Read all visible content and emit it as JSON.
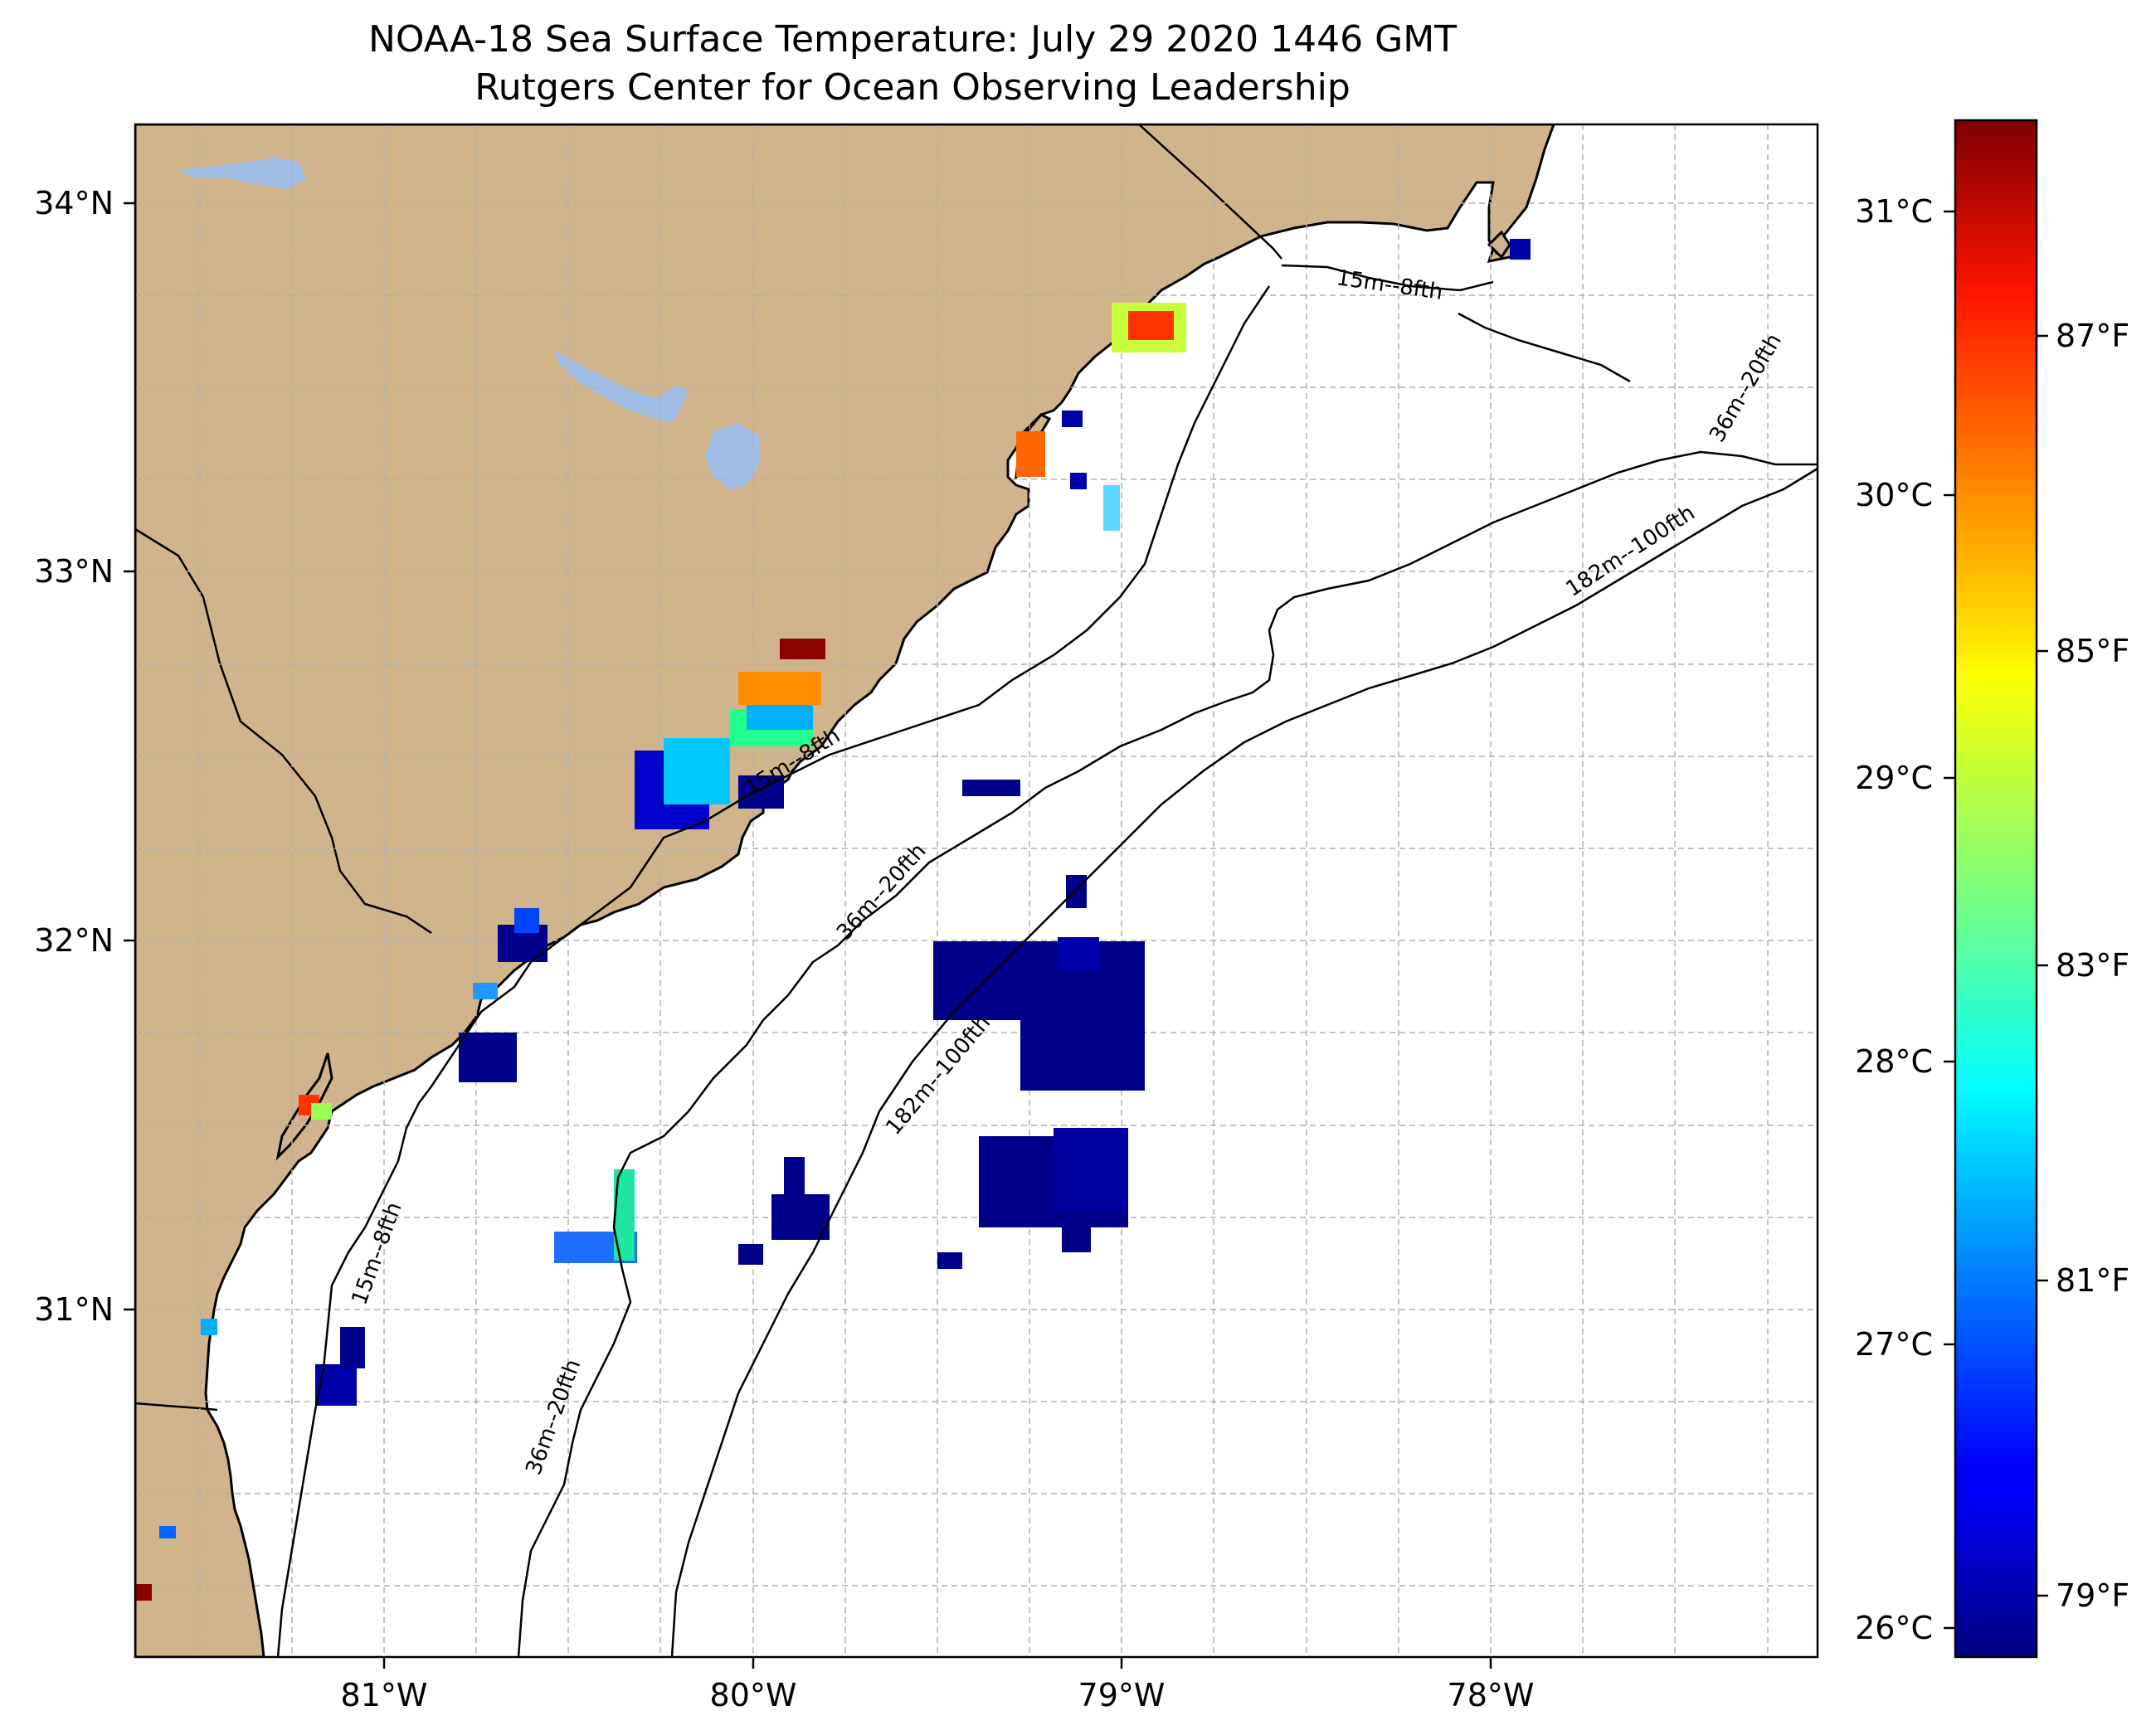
{
  "title": "NOAA-18 Sea Surface Temperature: July 29 2020 1446 GMT",
  "subtitle": "Rutgers Center for Ocean Observing Leadership",
  "colors": {
    "land": "#d2b48c",
    "lake": "#a0bde6",
    "ocean": "#ffffff",
    "grid": "#b0b0b0",
    "coast": "#000000"
  },
  "map": {
    "lon_range": [
      -81.68,
      -77.13
    ],
    "lat_range": [
      30.05,
      34.22
    ],
    "lon_ticks": [
      "81°W",
      "80°W",
      "79°W",
      "78°W"
    ],
    "lat_ticks": [
      "34°N",
      "33°N",
      "32°N",
      "31°N"
    ],
    "grid": true
  },
  "contour_labels": [
    "15m--8fth",
    "15m--8fth",
    "15m--8fth",
    "36m--20fth",
    "36m--20fth",
    "36m--20fth",
    "182m--100fth",
    "182m--100fth"
  ],
  "colorbar": {
    "colormap": "jet",
    "celsius_ticks": [
      "31°C",
      "30°C",
      "29°C",
      "28°C",
      "27°C",
      "26°C"
    ],
    "fahrenheit_ticks": [
      "87°F",
      "85°F",
      "83°F",
      "81°F",
      "79°F"
    ],
    "range_celsius": [
      25.9,
      31.3
    ]
  }
}
